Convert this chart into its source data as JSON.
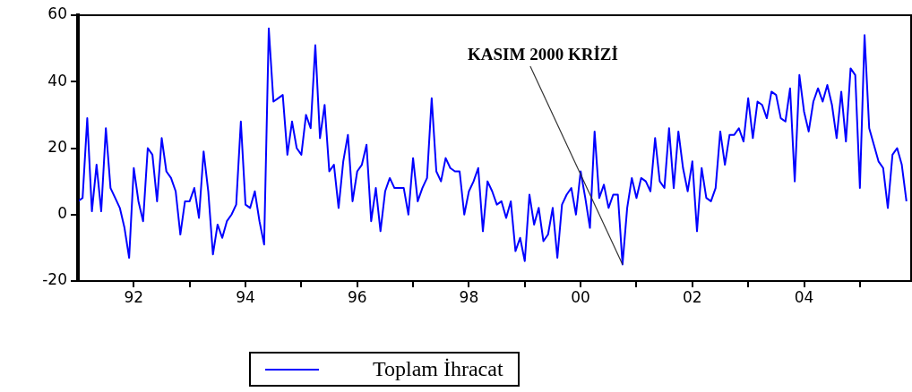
{
  "chart_data": {
    "type": "line",
    "x": [
      "1991-01",
      "1991-02",
      "1991-03",
      "1991-04",
      "1991-05",
      "1991-06",
      "1991-07",
      "1991-08",
      "1991-09",
      "1991-10",
      "1991-11",
      "1991-12",
      "1992-01",
      "1992-02",
      "1992-03",
      "1992-04",
      "1992-05",
      "1992-06",
      "1992-07",
      "1992-08",
      "1992-09",
      "1992-10",
      "1992-11",
      "1992-12",
      "1993-01",
      "1993-02",
      "1993-03",
      "1993-04",
      "1993-05",
      "1993-06",
      "1993-07",
      "1993-08",
      "1993-09",
      "1993-10",
      "1993-11",
      "1993-12",
      "1994-01",
      "1994-02",
      "1994-03",
      "1994-04",
      "1994-05",
      "1994-06",
      "1994-07",
      "1994-08",
      "1994-09",
      "1994-10",
      "1994-11",
      "1994-12",
      "1995-01",
      "1995-02",
      "1995-03",
      "1995-04",
      "1995-05",
      "1995-06",
      "1995-07",
      "1995-08",
      "1995-09",
      "1995-10",
      "1995-11",
      "1995-12",
      "1996-01",
      "1996-02",
      "1996-03",
      "1996-04",
      "1996-05",
      "1996-06",
      "1996-07",
      "1996-08",
      "1996-09",
      "1996-10",
      "1996-11",
      "1996-12",
      "1997-01",
      "1997-02",
      "1997-03",
      "1997-04",
      "1997-05",
      "1997-06",
      "1997-07",
      "1997-08",
      "1997-09",
      "1997-10",
      "1997-11",
      "1997-12",
      "1998-01",
      "1998-02",
      "1998-03",
      "1998-04",
      "1998-05",
      "1998-06",
      "1998-07",
      "1998-08",
      "1998-09",
      "1998-10",
      "1998-11",
      "1998-12",
      "1999-01",
      "1999-02",
      "1999-03",
      "1999-04",
      "1999-05",
      "1999-06",
      "1999-07",
      "1999-08",
      "1999-09",
      "1999-10",
      "1999-11",
      "1999-12",
      "2000-01",
      "2000-02",
      "2000-03",
      "2000-04",
      "2000-05",
      "2000-06",
      "2000-07",
      "2000-08",
      "2000-09",
      "2000-10",
      "2000-11",
      "2000-12",
      "2001-01",
      "2001-02",
      "2001-03",
      "2001-04",
      "2001-05",
      "2001-06",
      "2001-07",
      "2001-08",
      "2001-09",
      "2001-10",
      "2001-11",
      "2001-12",
      "2002-01",
      "2002-02",
      "2002-03",
      "2002-04",
      "2002-05",
      "2002-06",
      "2002-07",
      "2002-08",
      "2002-09",
      "2002-10",
      "2002-11",
      "2002-12",
      "2003-01",
      "2003-02",
      "2003-03",
      "2003-04",
      "2003-05",
      "2003-06",
      "2003-07",
      "2003-08",
      "2003-09",
      "2003-10",
      "2003-11",
      "2003-12",
      "2004-01",
      "2004-02",
      "2004-03",
      "2004-04",
      "2004-05",
      "2004-06",
      "2004-07",
      "2004-08",
      "2004-09",
      "2004-10",
      "2004-11",
      "2004-12",
      "2005-01",
      "2005-02",
      "2005-03",
      "2005-04",
      "2005-05",
      "2005-06",
      "2005-07",
      "2005-08",
      "2005-09",
      "2005-10",
      "2005-11"
    ],
    "series": [
      {
        "name": "Toplam İhracat",
        "color": "#0000ff",
        "values": [
          4,
          5,
          29,
          1,
          15,
          1,
          26,
          8,
          5,
          2,
          -4,
          -13,
          14,
          4,
          -2,
          20,
          18,
          4,
          23,
          13,
          11,
          7,
          -6,
          4,
          4,
          8,
          -1,
          19,
          7,
          -12,
          -3,
          -7,
          -2,
          0,
          3,
          28,
          3,
          2,
          7,
          -2,
          -9,
          56,
          34,
          35,
          36,
          18,
          28,
          20,
          18,
          30,
          26,
          51,
          23,
          33,
          13,
          15,
          2,
          16,
          24,
          4,
          13,
          15,
          21,
          -2,
          8,
          -5,
          7,
          11,
          8,
          8,
          8,
          0,
          17,
          4,
          8,
          11,
          35,
          13,
          10,
          17,
          14,
          13,
          13,
          0,
          7,
          10,
          14,
          -5,
          10,
          7,
          3,
          4,
          -1,
          4,
          -11,
          -7,
          -14,
          6,
          -3,
          2,
          -8,
          -6,
          2,
          -13,
          3,
          6,
          8,
          0,
          13,
          5,
          -4,
          25,
          5,
          9,
          2,
          6,
          6,
          -15,
          2,
          11,
          5,
          11,
          10,
          7,
          23,
          10,
          8,
          26,
          8,
          25,
          14,
          7,
          16,
          -5,
          14,
          5,
          4,
          8,
          25,
          15,
          24,
          24,
          26,
          22,
          35,
          23,
          34,
          33,
          29,
          37,
          36,
          29,
          28,
          38,
          10,
          42,
          31,
          25,
          34,
          38,
          34,
          39,
          33,
          23,
          37,
          22,
          44,
          42,
          8,
          54,
          26,
          21,
          16,
          14,
          2,
          18,
          20,
          15,
          4
        ]
      }
    ],
    "xlim": [
      "1991-01",
      "2005-12"
    ],
    "xticks": [
      {
        "value": "1992",
        "label": "92"
      },
      {
        "value": "1993",
        "label": null
      },
      {
        "value": "1994",
        "label": "94"
      },
      {
        "value": "1995",
        "label": null
      },
      {
        "value": "1996",
        "label": "96"
      },
      {
        "value": "1997",
        "label": null
      },
      {
        "value": "1998",
        "label": "98"
      },
      {
        "value": "1999",
        "label": null
      },
      {
        "value": "2000",
        "label": "00"
      },
      {
        "value": "2001",
        "label": null
      },
      {
        "value": "2002",
        "label": "02"
      },
      {
        "value": "2003",
        "label": null
      },
      {
        "value": "2004",
        "label": "04"
      },
      {
        "value": "2005",
        "label": null
      }
    ],
    "ylim": [
      -20,
      60
    ],
    "yticks": [
      -20,
      0,
      20,
      40,
      60
    ],
    "annotations": [
      {
        "text": "KASIM 2000 KRİZİ",
        "x": "2000-10",
        "y": -15
      }
    ],
    "grid": false,
    "legend": "bottom",
    "marker": "none",
    "line_style": "solid"
  }
}
